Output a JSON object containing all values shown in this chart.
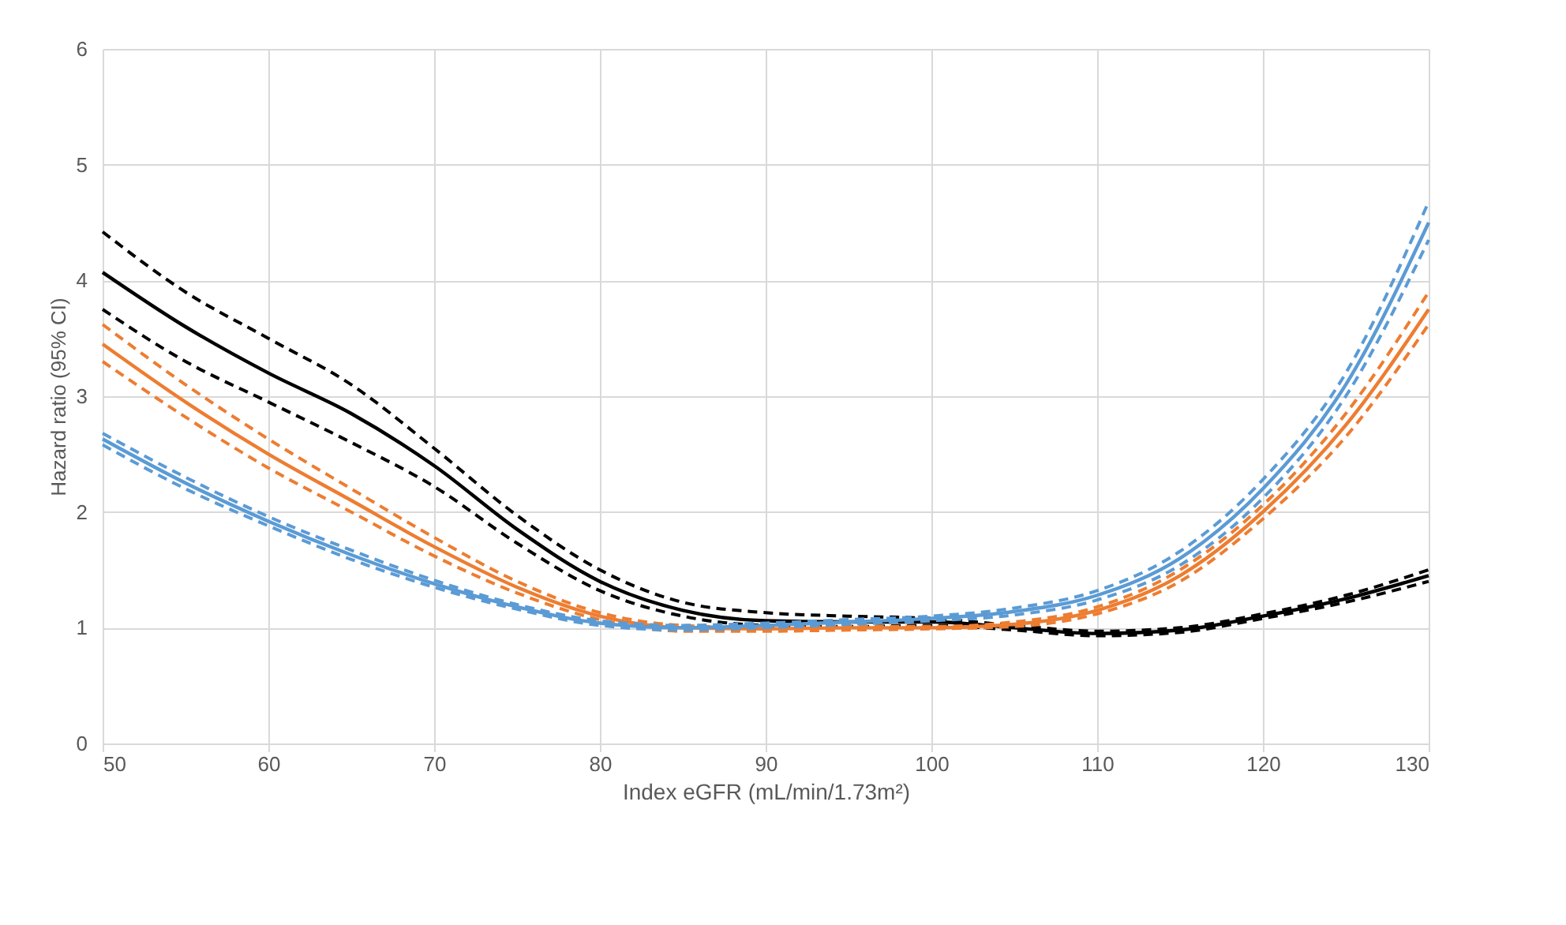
{
  "chart_data": {
    "type": "line",
    "xlabel": "Index eGFR (mL/min/1.73m²)",
    "ylabel": "Hazard ratio (95% CI)",
    "x": [
      50,
      55,
      60,
      65,
      70,
      75,
      80,
      85,
      90,
      95,
      100,
      105,
      110,
      115,
      120,
      125,
      130
    ],
    "xlim": [
      50,
      130
    ],
    "xticks": [
      50,
      60,
      70,
      80,
      90,
      100,
      110,
      120,
      130
    ],
    "ylim": [
      0,
      6
    ],
    "yticks": [
      0,
      1,
      2,
      3,
      4,
      5,
      6
    ],
    "grid": true,
    "series": [
      {
        "color": "#000000",
        "line_style": "dashed",
        "values": [
          4.42,
          3.9,
          3.5,
          3.1,
          2.55,
          1.97,
          1.5,
          1.22,
          1.13,
          1.1,
          1.08,
          1.02,
          0.97,
          1.0,
          1.12,
          1.28,
          1.5
        ]
      },
      {
        "color": "#000000",
        "line_style": "dashed",
        "values": [
          3.75,
          3.3,
          2.95,
          2.6,
          2.22,
          1.73,
          1.32,
          1.1,
          1.02,
          1.01,
          1.02,
          0.98,
          0.93,
          0.96,
          1.08,
          1.22,
          1.4
        ]
      },
      {
        "color": "#000000",
        "line_style": "solid",
        "values": [
          4.07,
          3.6,
          3.2,
          2.85,
          2.4,
          1.85,
          1.4,
          1.15,
          1.06,
          1.05,
          1.05,
          1.0,
          0.95,
          0.98,
          1.1,
          1.25,
          1.45
        ]
      },
      {
        "color": "#ed7d31",
        "line_style": "dashed",
        "values": [
          3.62,
          3.1,
          2.63,
          2.2,
          1.78,
          1.4,
          1.13,
          1.02,
          1.0,
          1.01,
          1.01,
          1.05,
          1.18,
          1.5,
          2.06,
          2.85,
          3.9
        ]
      },
      {
        "color": "#ed7d31",
        "line_style": "dashed",
        "values": [
          3.3,
          2.82,
          2.38,
          2.0,
          1.62,
          1.3,
          1.07,
          0.97,
          0.97,
          0.98,
          0.99,
          1.01,
          1.12,
          1.4,
          1.94,
          2.65,
          3.62
        ]
      },
      {
        "color": "#ed7d31",
        "line_style": "solid",
        "values": [
          3.45,
          2.95,
          2.5,
          2.1,
          1.7,
          1.35,
          1.1,
          1.0,
          0.99,
          1.0,
          1.0,
          1.03,
          1.15,
          1.45,
          2.0,
          2.75,
          3.75
        ]
      },
      {
        "color": "#5b9bd5",
        "line_style": "dashed",
        "values": [
          2.68,
          2.3,
          1.96,
          1.67,
          1.41,
          1.2,
          1.06,
          1.02,
          1.04,
          1.07,
          1.1,
          1.17,
          1.32,
          1.66,
          2.28,
          3.2,
          4.68
        ]
      },
      {
        "color": "#5b9bd5",
        "line_style": "dashed",
        "values": [
          2.58,
          2.2,
          1.88,
          1.59,
          1.35,
          1.16,
          1.02,
          0.98,
          1.0,
          1.03,
          1.06,
          1.11,
          1.24,
          1.54,
          2.12,
          3.0,
          4.35
        ]
      },
      {
        "color": "#5b9bd5",
        "line_style": "solid",
        "values": [
          2.63,
          2.25,
          1.92,
          1.63,
          1.38,
          1.18,
          1.04,
          1.0,
          1.02,
          1.05,
          1.08,
          1.14,
          1.28,
          1.6,
          2.2,
          3.1,
          4.5
        ]
      }
    ]
  }
}
